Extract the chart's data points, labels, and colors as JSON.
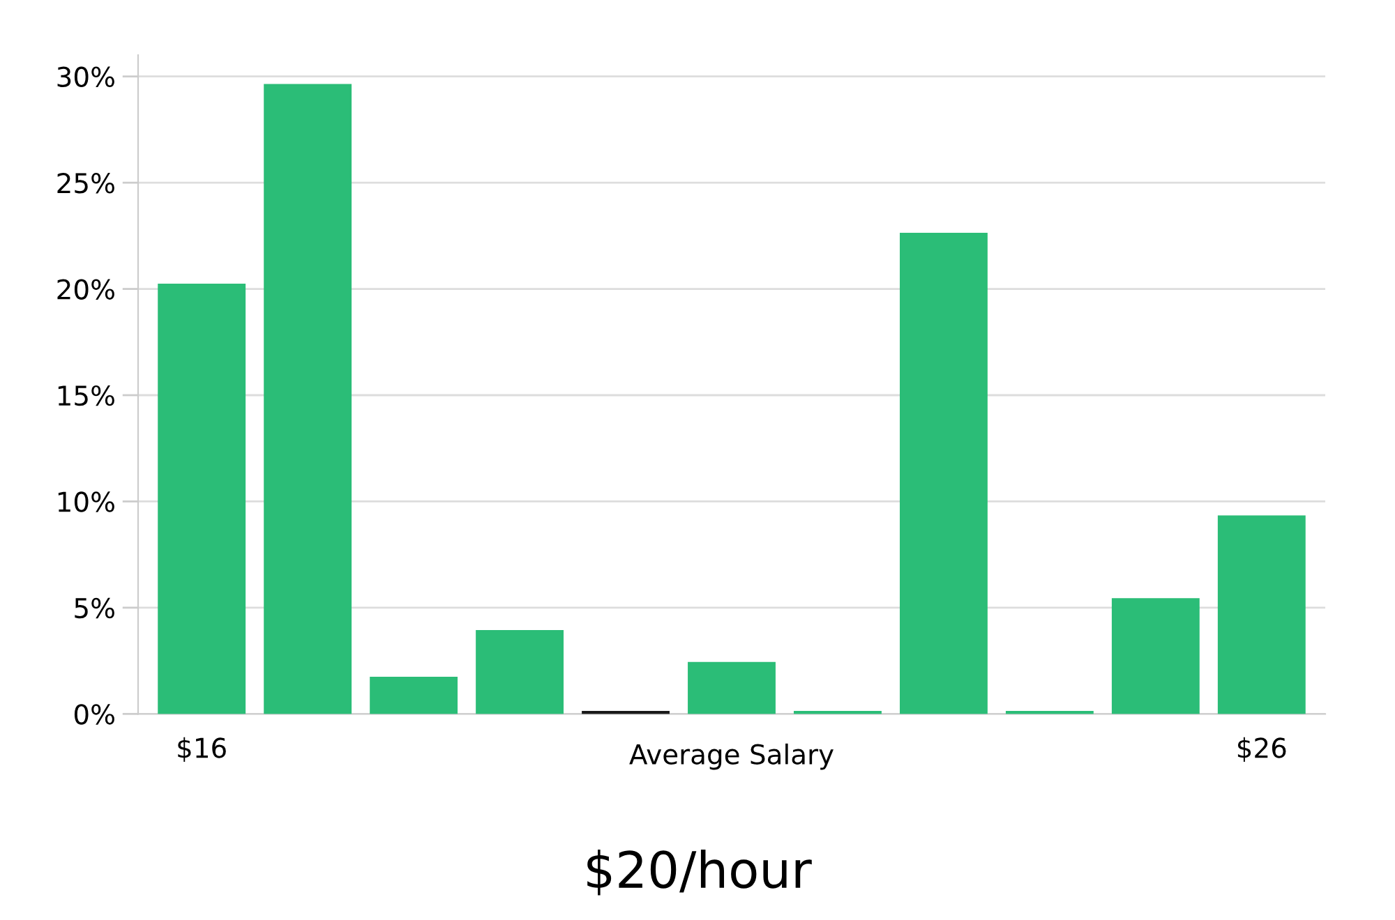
{
  "chart_data": {
    "type": "bar",
    "title": "$20/hour",
    "xlabel": "Average Salary",
    "categories": [
      "$16",
      null,
      null,
      null,
      null,
      null,
      null,
      null,
      null,
      null,
      "$26"
    ],
    "values": [
      20.2,
      29.6,
      1.7,
      3.9,
      0.1,
      2.4,
      0.1,
      22.6,
      0.1,
      5.4,
      9.3
    ],
    "colors": [
      "#2bbd77",
      "#2bbd77",
      "#2bbd77",
      "#2bbd77",
      "#1a1a1a",
      "#2bbd77",
      "#2bbd77",
      "#2bbd77",
      "#2bbd77",
      "#2bbd77",
      "#2bbd77"
    ],
    "ylim": [
      0,
      31
    ],
    "yticks": [
      {
        "value": 0,
        "label": "0%"
      },
      {
        "value": 5,
        "label": "5%"
      },
      {
        "value": 10,
        "label": "10%"
      },
      {
        "value": 15,
        "label": "15%"
      },
      {
        "value": 20,
        "label": "20%"
      },
      {
        "value": 25,
        "label": "25%"
      },
      {
        "value": 30,
        "label": "30%"
      }
    ],
    "grid": "y",
    "legend": false
  }
}
